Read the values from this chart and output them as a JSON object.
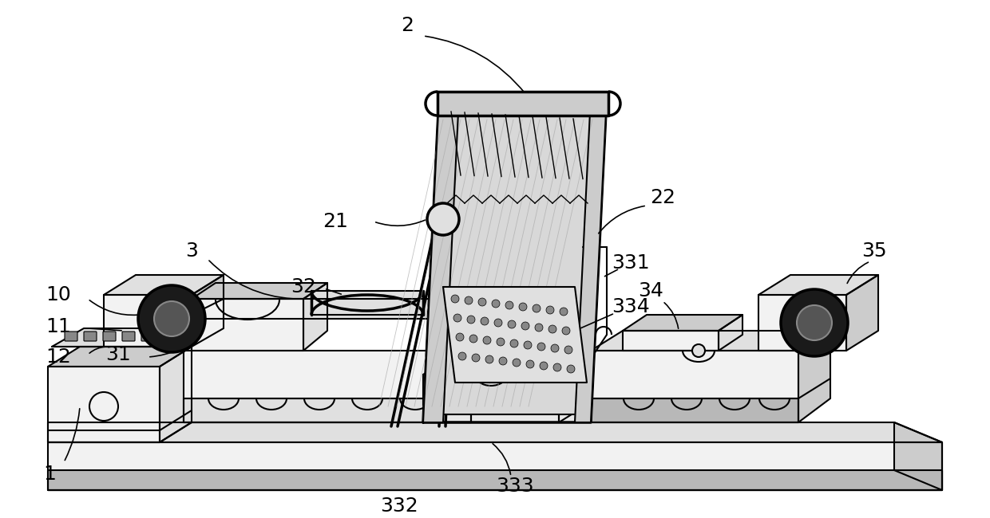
{
  "bg_color": "#ffffff",
  "line_color": "#000000",
  "lw": 1.5,
  "lw_thick": 2.5,
  "fill_light": "#f2f2f2",
  "fill_mid": "#e0e0e0",
  "fill_dark": "#cccccc",
  "fill_darker": "#b8b8b8",
  "label_fs": 18
}
